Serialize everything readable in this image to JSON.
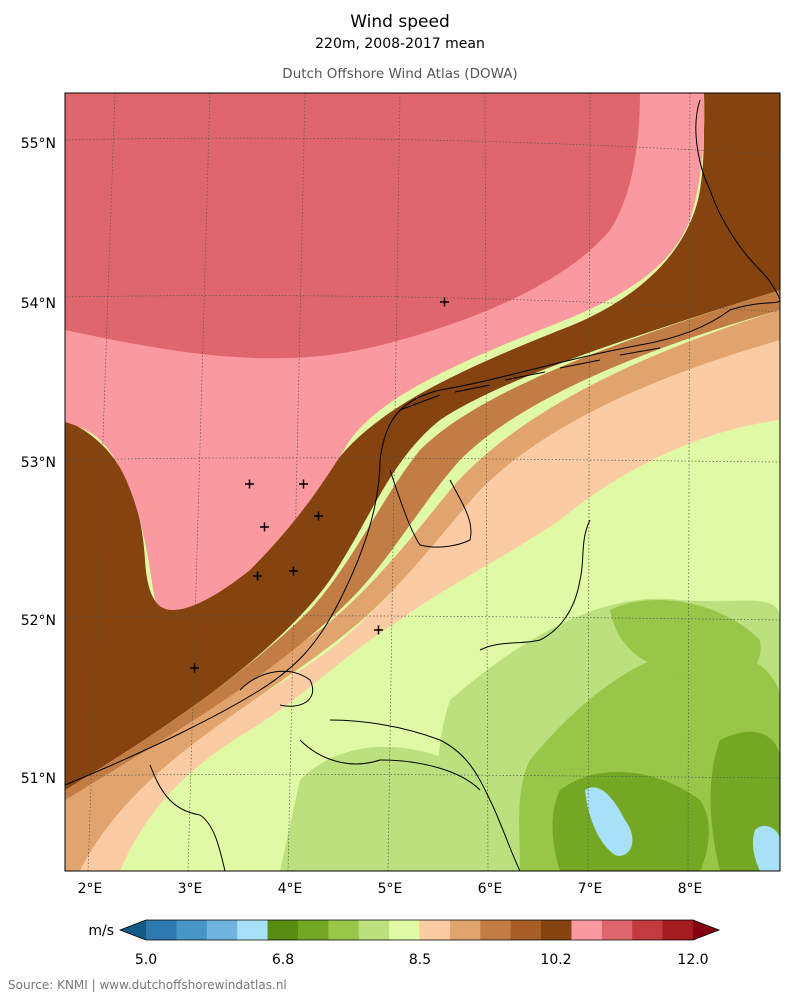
{
  "header": {
    "title": "Wind speed",
    "subtitle": "220m, 2008-2017 mean",
    "attribution_title": "Dutch Offshore Wind Atlas (DOWA)"
  },
  "axes": {
    "lat_labels": [
      "55°N",
      "54°N",
      "53°N",
      "52°N",
      "51°N"
    ],
    "lon_labels": [
      "2°E",
      "3°E",
      "4°E",
      "5°E",
      "6°E",
      "7°E",
      "8°E"
    ]
  },
  "colorbar": {
    "unit": "m/s",
    "tick_labels": [
      "5.0",
      "6.8",
      "8.5",
      "10.2",
      "12.0"
    ],
    "colors": [
      "#135a86",
      "#2d79ad",
      "#4794c6",
      "#6fb4de",
      "#a8e0f7",
      "#588d12",
      "#74a824",
      "#97c649",
      "#bbe07d",
      "#e0f9a5",
      "#fbcca3",
      "#e2a46e",
      "#c17d44",
      "#a65e26",
      "#84430f",
      "#fa9aa0",
      "#df666c",
      "#c13b41",
      "#a41b20",
      "#850011"
    ]
  },
  "map_colors": {
    "deep_brown": "#84430f",
    "brown": "#a65e26",
    "mid_brown": "#c17d44",
    "tan": "#e2a46e",
    "peach": "#fbcca3",
    "light_green": "#e0f9a5",
    "green2": "#bbe07d",
    "green3": "#97c649",
    "green4": "#74a824",
    "pink": "#fa9aa0",
    "rose": "#df666c",
    "light_blue": "#a8e0f7"
  },
  "markers": {
    "count": 9,
    "symbol": "+"
  },
  "footer": {
    "source": "Source: KNMI | www.dutchoffshorewindatlas.nl"
  }
}
